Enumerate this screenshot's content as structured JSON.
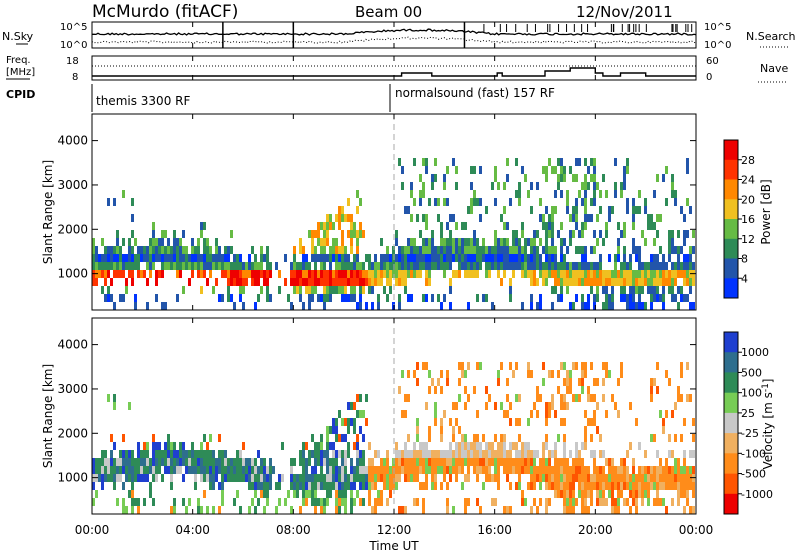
{
  "header": {
    "station": "McMurdo (fitACF)",
    "beam": "Beam 00",
    "date": "12/Nov/2011"
  },
  "noise_panel": {
    "left_label": "N.Sky",
    "right_label": "N.Search",
    "left_ticks": [
      "10^5",
      "10^0"
    ],
    "right_ticks": [
      "10^5",
      "10^0"
    ]
  },
  "freq_panel": {
    "left_label_1": "Freq.",
    "left_label_2": "[MHz]",
    "left_ticks": [
      "18",
      "8"
    ],
    "right_label": "Nave",
    "right_ticks": [
      "60",
      "0"
    ]
  },
  "cpid_panel": {
    "label": "CPID",
    "modes": [
      {
        "name": "themis 3300 RF",
        "start_hour": 0
      },
      {
        "name": "normalsound (fast) 157 RF",
        "start_hour": 12
      }
    ]
  },
  "chart_data": [
    {
      "type": "heatmap",
      "name": "Power",
      "ylabel": "Slant Range [km]",
      "xlabel": "",
      "ylim": [
        180,
        4600
      ],
      "yticks": [
        "1000",
        "2000",
        "3000",
        "4000"
      ],
      "colorbar_label": "Power [dB]",
      "colorbar_ticks": [
        "4",
        "8",
        "12",
        "16",
        "20",
        "24",
        "28"
      ],
      "colors": [
        "#0033ff",
        "#2255aa",
        "#2e8b57",
        "#66bb44",
        "#f0c020",
        "#ff8800",
        "#ff3300",
        "#ee0000"
      ]
    },
    {
      "type": "heatmap",
      "name": "Velocity",
      "ylabel": "Slant Range [km]",
      "xlabel": "Time UT",
      "ylim": [
        180,
        4600
      ],
      "yticks": [
        "1000",
        "2000",
        "3000",
        "4000"
      ],
      "xticks": [
        "00:00",
        "04:00",
        "08:00",
        "12:00",
        "16:00",
        "20:00",
        "00:00"
      ],
      "colorbar_label": "Velocity [m s",
      "colorbar_label_sup": "-1",
      "colorbar_label_end": "]",
      "colorbar_ticks": [
        "1000",
        "500",
        "100",
        "25",
        "-25",
        "-100",
        "-500",
        "-1000"
      ],
      "colors": [
        "#1f3fcf",
        "#2e6e8e",
        "#2e8b57",
        "#77cc55",
        "#c8c8c8",
        "#f0b060",
        "#ff8c1a",
        "#ff5500",
        "#ee0000"
      ]
    }
  ]
}
